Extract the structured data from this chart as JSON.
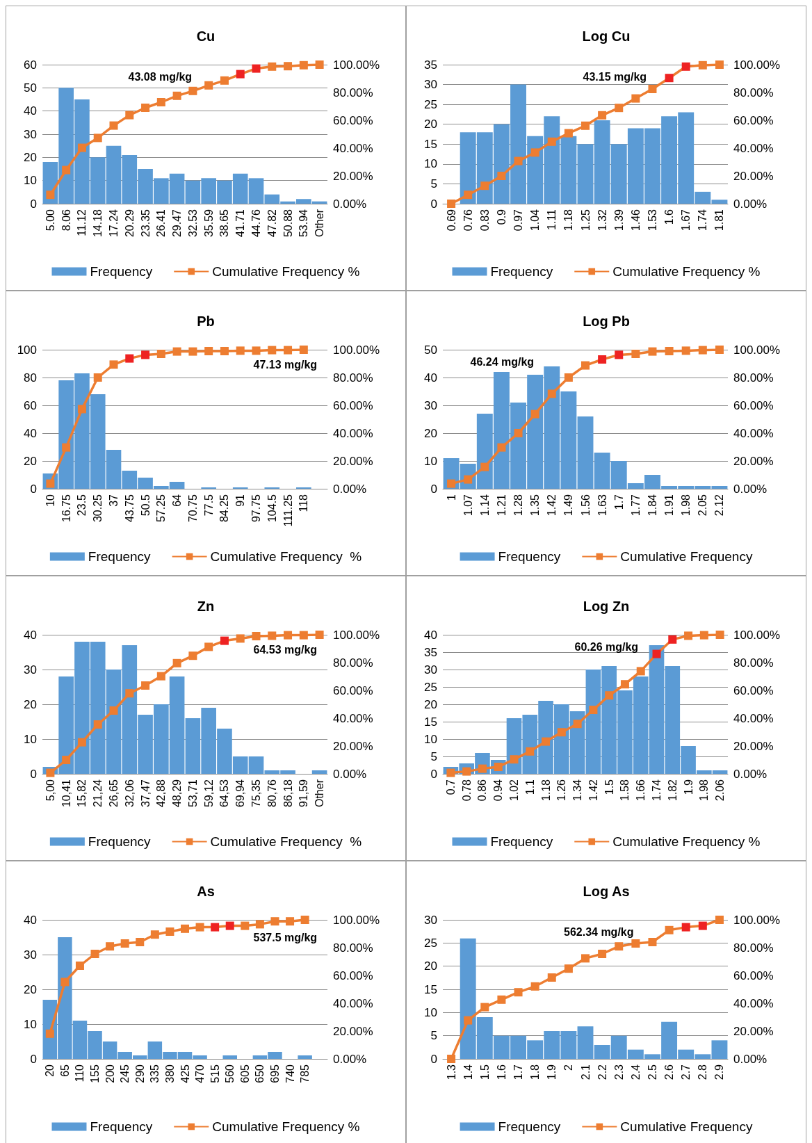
{
  "chart_data": [
    {
      "type": "bar",
      "title": "Cu",
      "categories": [
        "5.00",
        "8.06",
        "11.12",
        "14.18",
        "17.24",
        "20.29",
        "23.35",
        "26.41",
        "29.47",
        "32.53",
        "35.59",
        "38.65",
        "41.71",
        "44.76",
        "47.82",
        "50.88",
        "53.94",
        "Other"
      ],
      "series": [
        {
          "name": "Frequency",
          "color": "#5b9bd5",
          "values": [
            18,
            50,
            45,
            20,
            25,
            21,
            15,
            11,
            13,
            10,
            11,
            10,
            13,
            11,
            4,
            1,
            2,
            1
          ]
        },
        {
          "name": "Cumulative Frequency %",
          "type": "line",
          "axis": "y2",
          "color": "#ed7d31",
          "colors": [
            "#ed7d31",
            "#ed7d31",
            "#ed7d31",
            "#ed7d31",
            "#ed7d31",
            "#ed7d31",
            "#ed7d31",
            "#ed7d31",
            "#ed7d31",
            "#ed7d31",
            "#ed7d31",
            "#ed7d31",
            "#ee2222",
            "#ee2222",
            "#ed7d31",
            "#ed7d31",
            "#ed7d31",
            "#ed7d31"
          ],
          "values": [
            6.4,
            24.2,
            40.2,
            47.3,
            56.2,
            63.7,
            69.0,
            73.0,
            77.6,
            81.1,
            85.1,
            88.6,
            93.2,
            97.2,
            98.6,
            98.9,
            99.6,
            100
          ]
        }
      ],
      "ylim": [
        0,
        60
      ],
      "yticks": [
        0,
        10,
        20,
        30,
        40,
        50,
        60
      ],
      "y2lim": [
        0,
        100
      ],
      "y2ticks": [
        {
          "value": 0,
          "label": "0.00%"
        },
        {
          "value": 20,
          "label": "20.00%"
        },
        {
          "value": 40,
          "label": "40.00%"
        },
        {
          "value": 60,
          "label": "60.00%"
        },
        {
          "value": 80,
          "label": "80.00%"
        },
        {
          "value": 100,
          "label": "100.00%"
        }
      ],
      "grid": "y",
      "legend": "bottom",
      "marker": "square",
      "annotations": [
        "43.08 mg/kg"
      ]
    },
    {
      "type": "bar",
      "title": "Log Cu",
      "categories": [
        "0.69",
        "0.76",
        "0.83",
        "0.9",
        "0.97",
        "1.04",
        "1.11",
        "1.18",
        "1.25",
        "1.32",
        "1.39",
        "1.46",
        "1.53",
        "1.6",
        "1.67",
        "1.74",
        "1.81"
      ],
      "series": [
        {
          "name": "Frequency",
          "color": "#5b9bd5",
          "values": [
            0,
            18,
            18,
            20,
            30,
            17,
            22,
            17,
            15,
            21,
            15,
            19,
            19,
            22,
            23,
            3,
            1
          ]
        },
        {
          "name": "Cumulative Frequency %",
          "type": "line",
          "axis": "y2",
          "color": "#ed7d31",
          "colors": [
            "#ed7d31",
            "#ed7d31",
            "#ed7d31",
            "#ed7d31",
            "#ed7d31",
            "#ed7d31",
            "#ed7d31",
            "#ed7d31",
            "#ed7d31",
            "#ed7d31",
            "#ed7d31",
            "#ed7d31",
            "#ed7d31",
            "#ee2222",
            "#ee2222",
            "#ed7d31",
            "#ed7d31"
          ],
          "values": [
            0,
            6.4,
            12.9,
            20.0,
            30.7,
            36.8,
            44.6,
            50.7,
            56.1,
            63.6,
            68.9,
            75.7,
            82.5,
            90.4,
            98.6,
            99.6,
            100
          ]
        }
      ],
      "ylim": [
        0,
        35
      ],
      "yticks": [
        0,
        5,
        10,
        15,
        20,
        25,
        30,
        35
      ],
      "y2lim": [
        0,
        100
      ],
      "y2ticks": [
        {
          "value": 0,
          "label": "0.00%"
        },
        {
          "value": 20,
          "label": "20.00%"
        },
        {
          "value": 40,
          "label": "40.00%"
        },
        {
          "value": 60,
          "label": "60.00%"
        },
        {
          "value": 80,
          "label": "80.00%"
        },
        {
          "value": 100,
          "label": "100.00%"
        }
      ],
      "grid": "y",
      "legend": "bottom",
      "marker": "square",
      "annotations": [
        "43.15 mg/kg"
      ]
    },
    {
      "type": "bar",
      "title": "Pb",
      "categories": [
        "10",
        "16.75",
        "23.5",
        "30.25",
        "37",
        "43.75",
        "50.5",
        "57.25",
        "64",
        "70.75",
        "77.5",
        "84.25",
        "91",
        "97.75",
        "104.5",
        "111.25",
        "118",
        null
      ],
      "series": [
        {
          "name": "Frequency",
          "color": "#5b9bd5",
          "values": [
            11,
            78,
            83,
            68,
            28,
            13,
            8,
            2,
            5,
            0,
            1,
            0,
            1,
            0,
            1,
            0,
            1,
            null
          ]
        },
        {
          "name": "Cumulative Frequency  %",
          "type": "line",
          "axis": "y2",
          "color": "#ed7d31",
          "colors": [
            "#ed7d31",
            "#ed7d31",
            "#ed7d31",
            "#ed7d31",
            "#ed7d31",
            "#ee2222",
            "#ee2222",
            "#ed7d31",
            "#ed7d31",
            "#ed7d31",
            "#ed7d31",
            "#ed7d31",
            "#ed7d31",
            "#ed7d31",
            "#ed7d31",
            "#ed7d31",
            "#ed7d31",
            "#ed7d31"
          ],
          "values": [
            3.7,
            29.7,
            57.3,
            80.0,
            89.3,
            93.7,
            96.3,
            97.0,
            98.7,
            98.7,
            99.0,
            99.0,
            99.3,
            99.3,
            99.7,
            99.7,
            100,
            null
          ]
        }
      ],
      "ylim": [
        0,
        100
      ],
      "yticks": [
        0,
        20,
        40,
        60,
        80,
        100
      ],
      "y2lim": [
        0,
        100
      ],
      "y2ticks": [
        {
          "value": 0,
          "label": "0.00%"
        },
        {
          "value": 20,
          "label": "20.00%"
        },
        {
          "value": 40,
          "label": "40.00%"
        },
        {
          "value": 60,
          "label": "60.00%"
        },
        {
          "value": 80,
          "label": "80.00%"
        },
        {
          "value": 100,
          "label": "100.00%"
        }
      ],
      "grid": "y",
      "legend": "bottom",
      "marker": "square",
      "annotations": [
        "47.13 mg/kg"
      ]
    },
    {
      "type": "bar",
      "title": "Log Pb",
      "categories": [
        "1",
        "1.07",
        "1.14",
        "1.21",
        "1.28",
        "1.35",
        "1.42",
        "1.49",
        "1.56",
        "1.63",
        "1.7",
        "1.77",
        "1.84",
        "1.91",
        "1.98",
        "2.05",
        "2.12"
      ],
      "series": [
        {
          "name": "Frequency",
          "color": "#5b9bd5",
          "values": [
            11,
            9,
            27,
            42,
            31,
            41,
            44,
            35,
            26,
            13,
            10,
            2,
            5,
            1,
            1,
            1,
            1
          ]
        },
        {
          "name": "Cumulative Frequency",
          "type": "line",
          "axis": "y2",
          "color": "#ed7d31",
          "colors": [
            "#ed7d31",
            "#ed7d31",
            "#ed7d31",
            "#ed7d31",
            "#ed7d31",
            "#ed7d31",
            "#ed7d31",
            "#ed7d31",
            "#ed7d31",
            "#ee2222",
            "#ee2222",
            "#ed7d31",
            "#ed7d31",
            "#ed7d31",
            "#ed7d31",
            "#ed7d31",
            "#ed7d31"
          ],
          "values": [
            3.7,
            6.7,
            15.7,
            29.7,
            40.0,
            53.7,
            68.3,
            80.0,
            88.7,
            93.0,
            96.3,
            97.0,
            98.7,
            99.0,
            99.3,
            99.7,
            100
          ]
        }
      ],
      "ylim": [
        0,
        50
      ],
      "yticks": [
        0,
        10,
        20,
        30,
        40,
        50
      ],
      "y2lim": [
        0,
        100
      ],
      "y2ticks": [
        {
          "value": 0,
          "label": "0.00%"
        },
        {
          "value": 20,
          "label": "20.00%"
        },
        {
          "value": 40,
          "label": "40.00%"
        },
        {
          "value": 60,
          "label": "60.00%"
        },
        {
          "value": 80,
          "label": "80.00%"
        },
        {
          "value": 100,
          "label": "100.00%"
        }
      ],
      "grid": "y",
      "legend": "bottom",
      "marker": "square",
      "annotations": [
        "46.24 mg/kg"
      ]
    },
    {
      "type": "bar",
      "title": "Zn",
      "categories": [
        "5,00",
        "10,41",
        "15,82",
        "21,24",
        "26,65",
        "32,06",
        "37,47",
        "42,88",
        "48,29",
        "53,71",
        "59,12",
        "64,53",
        "69,94",
        "75,35",
        "80,76",
        "86,18",
        "91,59",
        "Other"
      ],
      "series": [
        {
          "name": "Frequency",
          "color": "#5b9bd5",
          "values": [
            2,
            28,
            38,
            38,
            30,
            37,
            17,
            20,
            28,
            16,
            19,
            13,
            5,
            5,
            1,
            1,
            0,
            1
          ]
        },
        {
          "name": "Cumulative Frequency  %",
          "type": "line",
          "axis": "y2",
          "color": "#ed7d31",
          "colors": [
            "#ed7d31",
            "#ed7d31",
            "#ed7d31",
            "#ed7d31",
            "#ed7d31",
            "#ed7d31",
            "#ed7d31",
            "#ed7d31",
            "#ed7d31",
            "#ed7d31",
            "#ed7d31",
            "#ee2222",
            "#ed7d31",
            "#ed7d31",
            "#ed7d31",
            "#ed7d31",
            "#ed7d31",
            "#ed7d31"
          ],
          "values": [
            0.7,
            10.0,
            22.7,
            35.5,
            45.5,
            57.9,
            63.5,
            70.2,
            79.6,
            84.9,
            91.3,
            95.7,
            97.3,
            99.0,
            99.3,
            99.7,
            99.7,
            100
          ]
        }
      ],
      "ylim": [
        0,
        40
      ],
      "yticks": [
        0,
        10,
        20,
        30,
        40
      ],
      "y2lim": [
        0,
        100
      ],
      "y2ticks": [
        {
          "value": 0,
          "label": "0.00%"
        },
        {
          "value": 20,
          "label": "20.00%"
        },
        {
          "value": 40,
          "label": "40.00%"
        },
        {
          "value": 60,
          "label": "60.00%"
        },
        {
          "value": 80,
          "label": "80.00%"
        },
        {
          "value": 100,
          "label": "100.00%"
        }
      ],
      "grid": "y",
      "legend": "bottom",
      "marker": "square",
      "annotations": [
        "64.53 mg/kg"
      ]
    },
    {
      "type": "bar",
      "title": "Log Zn",
      "categories": [
        "0.7",
        "0.78",
        "0.86",
        "0.94",
        "1.02",
        "1.1",
        "1.18",
        "1.26",
        "1.34",
        "1.42",
        "1.5",
        "1.58",
        "1.66",
        "1.74",
        "1.82",
        "1.9",
        "1.98",
        "2.06"
      ],
      "series": [
        {
          "name": "Frequency",
          "color": "#5b9bd5",
          "values": [
            2,
            3,
            6,
            4,
            16,
            17,
            21,
            20,
            18,
            30,
            31,
            24,
            28,
            37,
            31,
            8,
            1,
            1
          ]
        },
        {
          "name": "Cumulative Frequency %",
          "type": "line",
          "axis": "y2",
          "color": "#ed7d31",
          "colors": [
            "#ed7d31",
            "#ed7d31",
            "#ed7d31",
            "#ed7d31",
            "#ed7d31",
            "#ed7d31",
            "#ed7d31",
            "#ed7d31",
            "#ed7d31",
            "#ed7d31",
            "#ed7d31",
            "#ed7d31",
            "#ed7d31",
            "#ee2222",
            "#ee2222",
            "#ed7d31",
            "#ed7d31",
            "#ed7d31"
          ],
          "values": [
            0.7,
            1.7,
            3.7,
            5.0,
            10.4,
            16.1,
            23.2,
            29.9,
            35.9,
            46.0,
            56.4,
            64.4,
            73.8,
            86.2,
            96.6,
            99.3,
            99.7,
            100
          ]
        }
      ],
      "ylim": [
        0,
        40
      ],
      "yticks": [
        0,
        5,
        10,
        15,
        20,
        25,
        30,
        35,
        40
      ],
      "y2lim": [
        0,
        100
      ],
      "y2ticks": [
        {
          "value": 0,
          "label": "0.00%"
        },
        {
          "value": 20,
          "label": "20.00%"
        },
        {
          "value": 40,
          "label": "40.00%"
        },
        {
          "value": 60,
          "label": "60.00%"
        },
        {
          "value": 80,
          "label": "80.00%"
        },
        {
          "value": 100,
          "label": "100.00%"
        }
      ],
      "grid": "y",
      "legend": "bottom",
      "marker": "square",
      "annotations": [
        "60.26 mg/kg"
      ]
    },
    {
      "type": "bar",
      "title": "As",
      "categories": [
        "20",
        "65",
        "110",
        "155",
        "200",
        "245",
        "290",
        "335",
        "380",
        "425",
        "470",
        "515",
        "560",
        "605",
        "650",
        "695",
        "740",
        "785",
        null
      ],
      "series": [
        {
          "name": "Frequency",
          "color": "#5b9bd5",
          "values": [
            17,
            35,
            11,
            8,
            5,
            2,
            1,
            5,
            2,
            2,
            1,
            0,
            1,
            0,
            1,
            2,
            0,
            1,
            null
          ]
        },
        {
          "name": "Cumulative Frequency %",
          "type": "line",
          "axis": "y2",
          "color": "#ed7d31",
          "colors": [
            "#ed7d31",
            "#ed7d31",
            "#ed7d31",
            "#ed7d31",
            "#ed7d31",
            "#ed7d31",
            "#ed7d31",
            "#ed7d31",
            "#ed7d31",
            "#ed7d31",
            "#ed7d31",
            "#ee2222",
            "#ee2222",
            "#ed7d31",
            "#ed7d31",
            "#ed7d31",
            "#ed7d31",
            "#ed7d31",
            "#ed7d31"
          ],
          "values": [
            18.1,
            55.3,
            67.0,
            75.5,
            80.9,
            83.0,
            84.0,
            89.4,
            91.5,
            93.6,
            94.7,
            94.7,
            95.7,
            95.7,
            96.8,
            98.9,
            98.9,
            100,
            null
          ]
        }
      ],
      "ylim": [
        0,
        40
      ],
      "yticks": [
        0,
        10,
        20,
        30,
        40
      ],
      "y2lim": [
        0,
        100
      ],
      "y2ticks": [
        {
          "value": 0,
          "label": "0.00%"
        },
        {
          "value": 20,
          "label": "20.00%"
        },
        {
          "value": 40,
          "label": "40.00%"
        },
        {
          "value": 60,
          "label": "60.00%"
        },
        {
          "value": 80,
          "label": "80.00%"
        },
        {
          "value": 100,
          "label": "100.00%"
        }
      ],
      "grid": "y",
      "legend": "bottom",
      "marker": "square",
      "annotations": [
        "537.5 mg/kg"
      ]
    },
    {
      "type": "bar",
      "title": "Log As",
      "categories": [
        "1.3",
        "1.4",
        "1.5",
        "1.6",
        "1.7",
        "1.8",
        "1.9",
        "2",
        "2.1",
        "2.2",
        "2.3",
        "2.4",
        "2.5",
        "2.6",
        "2.7",
        "2.8",
        "2.9"
      ],
      "series": [
        {
          "name": "Frequency",
          "color": "#5b9bd5",
          "values": [
            0,
            26,
            9,
            5,
            5,
            4,
            6,
            6,
            7,
            3,
            5,
            2,
            1,
            8,
            2,
            1,
            4
          ]
        },
        {
          "name": "Cumulative Frequency",
          "type": "line",
          "axis": "y2",
          "color": "#ed7d31",
          "colors": [
            "#ed7d31",
            "#ed7d31",
            "#ed7d31",
            "#ed7d31",
            "#ed7d31",
            "#ed7d31",
            "#ed7d31",
            "#ed7d31",
            "#ed7d31",
            "#ed7d31",
            "#ed7d31",
            "#ed7d31",
            "#ed7d31",
            "#ed7d31",
            "#ee2222",
            "#ee2222",
            "#ed7d31"
          ],
          "values": [
            0,
            27.7,
            37.2,
            42.6,
            47.9,
            52.1,
            58.5,
            64.9,
            72.3,
            75.5,
            80.9,
            83.0,
            84.0,
            92.6,
            94.7,
            95.7,
            100
          ]
        }
      ],
      "ylim": [
        0,
        30
      ],
      "yticks": [
        0,
        5,
        10,
        15,
        20,
        25,
        30
      ],
      "y2lim": [
        0,
        100
      ],
      "y2ticks": [
        {
          "value": 0,
          "label": "0.00%"
        },
        {
          "value": 20,
          "label": "20.00%"
        },
        {
          "value": 40,
          "label": "40.00%"
        },
        {
          "value": 60,
          "label": "60.00%"
        },
        {
          "value": 80,
          "label": "80.00%"
        },
        {
          "value": 100,
          "label": "100.00%"
        }
      ],
      "grid": "y",
      "legend": "bottom",
      "marker": "square",
      "annotations": [
        "562.34 mg/kg"
      ]
    }
  ]
}
